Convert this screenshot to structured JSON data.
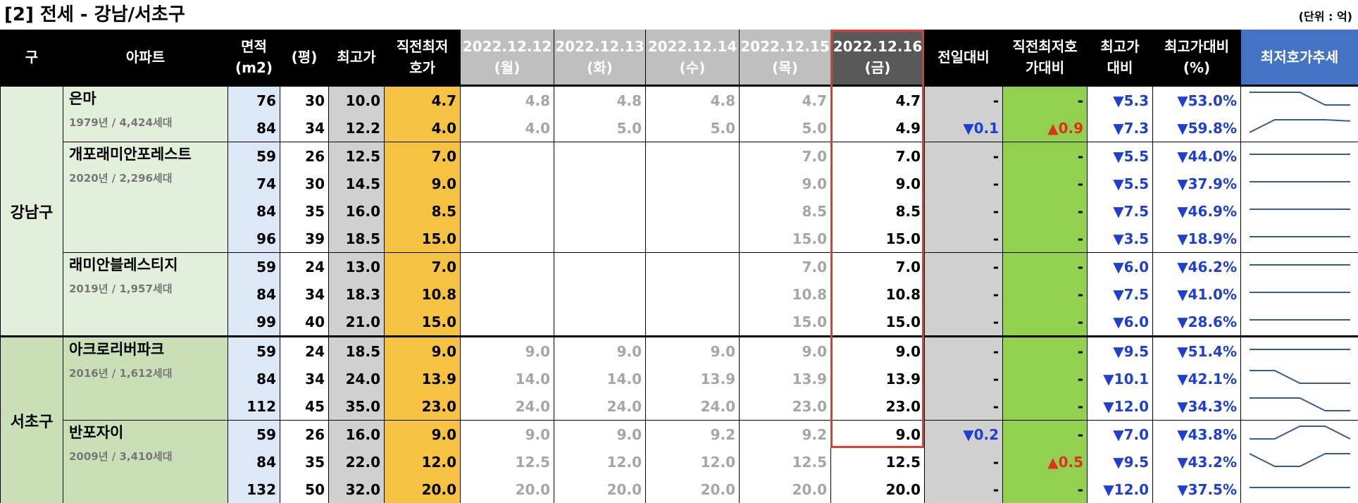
{
  "title": "[2] 전세 - 강남/서초구",
  "unit": "(단위 : 억)",
  "header": [
    "구",
    "아파트",
    "면적\n(m2)",
    "(평)",
    "최고가",
    "직전최저\n호가",
    "2022.12.12\n(월)",
    "2022.12.13\n(화)",
    "2022.12.14\n(수)",
    "2022.12.15\n(목)",
    "2022.12.16\n(금)",
    "전일대비",
    "직전최저호\n가대비",
    "최고가\n대비",
    "최고가대비\n(%)",
    "최저호가추세"
  ],
  "districts": [
    {
      "name": "강남구",
      "apartments": [
        {
          "name": "은마",
          "info": "1979년 / 4,424세대",
          "units": [
            [
              "76",
              "30",
              "10.0",
              "4.7",
              "4.8",
              "4.8",
              "4.8",
              "4.7",
              "4.7",
              "-",
              "-",
              "▼5.3",
              "▼53.0%"
            ],
            [
              "84",
              "34",
              "12.2",
              "4.0",
              "4.0",
              "5.0",
              "5.0",
              "5.0",
              "4.9",
              "▼0.1",
              "▲0.9",
              "▼7.3",
              "▼59.8%"
            ]
          ]
        },
        {
          "name": "개포래미안포레스트",
          "info": "2020년 / 2,296세대",
          "units": [
            [
              "59",
              "26",
              "12.5",
              "7.0",
              null,
              null,
              null,
              "7.0",
              "7.0",
              "-",
              "-",
              "▼5.5",
              "▼44.0%"
            ],
            [
              "74",
              "30",
              "14.5",
              "9.0",
              null,
              null,
              null,
              "9.0",
              "9.0",
              "-",
              "-",
              "▼5.5",
              "▼37.9%"
            ],
            [
              "84",
              "35",
              "16.0",
              "8.5",
              null,
              null,
              null,
              "8.5",
              "8.5",
              "-",
              "-",
              "▼7.5",
              "▼46.9%"
            ],
            [
              "96",
              "39",
              "18.5",
              "15.0",
              null,
              null,
              null,
              "15.0",
              "15.0",
              "-",
              "-",
              "▼3.5",
              "▼18.9%"
            ]
          ]
        },
        {
          "name": "래미안블레스티지",
          "info": "2019년 / 1,957세대",
          "units": [
            [
              "59",
              "24",
              "13.0",
              "7.0",
              null,
              null,
              null,
              "7.0",
              "7.0",
              "-",
              "-",
              "▼6.0",
              "▼46.2%"
            ],
            [
              "84",
              "34",
              "18.3",
              "10.8",
              null,
              null,
              null,
              "10.8",
              "10.8",
              "-",
              "-",
              "▼7.5",
              "▼41.0%"
            ],
            [
              "99",
              "40",
              "21.0",
              "15.0",
              null,
              null,
              null,
              "15.0",
              "15.0",
              "-",
              "-",
              "▼6.0",
              "▼28.6%"
            ]
          ]
        }
      ]
    },
    {
      "name": "서초구",
      "apartments": [
        {
          "name": "아크로리버파크",
          "info": "2016년 / 1,612세대",
          "units": [
            [
              "59",
              "24",
              "18.5",
              "9.0",
              "9.0",
              "9.0",
              "9.0",
              "9.0",
              "9.0",
              "-",
              "-",
              "▼9.5",
              "▼51.4%"
            ],
            [
              "84",
              "34",
              "24.0",
              "13.9",
              "14.0",
              "14.0",
              "13.9",
              "13.9",
              "13.9",
              "-",
              "-",
              "▼10.1",
              "▼42.1%"
            ],
            [
              "112",
              "45",
              "35.0",
              "23.0",
              "24.0",
              "24.0",
              "24.0",
              "23.0",
              "23.0",
              "-",
              "-",
              "▼12.0",
              "▼34.3%"
            ]
          ]
        },
        {
          "name": "반포자이",
          "info": "2009년 / 3,410세대",
          "units": [
            [
              "59",
              "26",
              "16.0",
              "9.0",
              "9.0",
              "9.0",
              "9.2",
              "9.2",
              "9.0",
              "▼0.2",
              "-",
              "▼7.0",
              "▼43.8%"
            ],
            [
              "84",
              "35",
              "22.0",
              "12.0",
              "12.5",
              "12.0",
              "12.0",
              "12.5",
              "12.5",
              "-",
              "▲0.5",
              "▼9.5",
              "▼43.2%"
            ],
            [
              "132",
              "50",
              "32.0",
              "20.0",
              "20.0",
              "20.0",
              "20.0",
              "20.0",
              "20.0",
              "-",
              "-",
              "▼12.0",
              "▼37.5%"
            ]
          ]
        }
      ]
    }
  ]
}
